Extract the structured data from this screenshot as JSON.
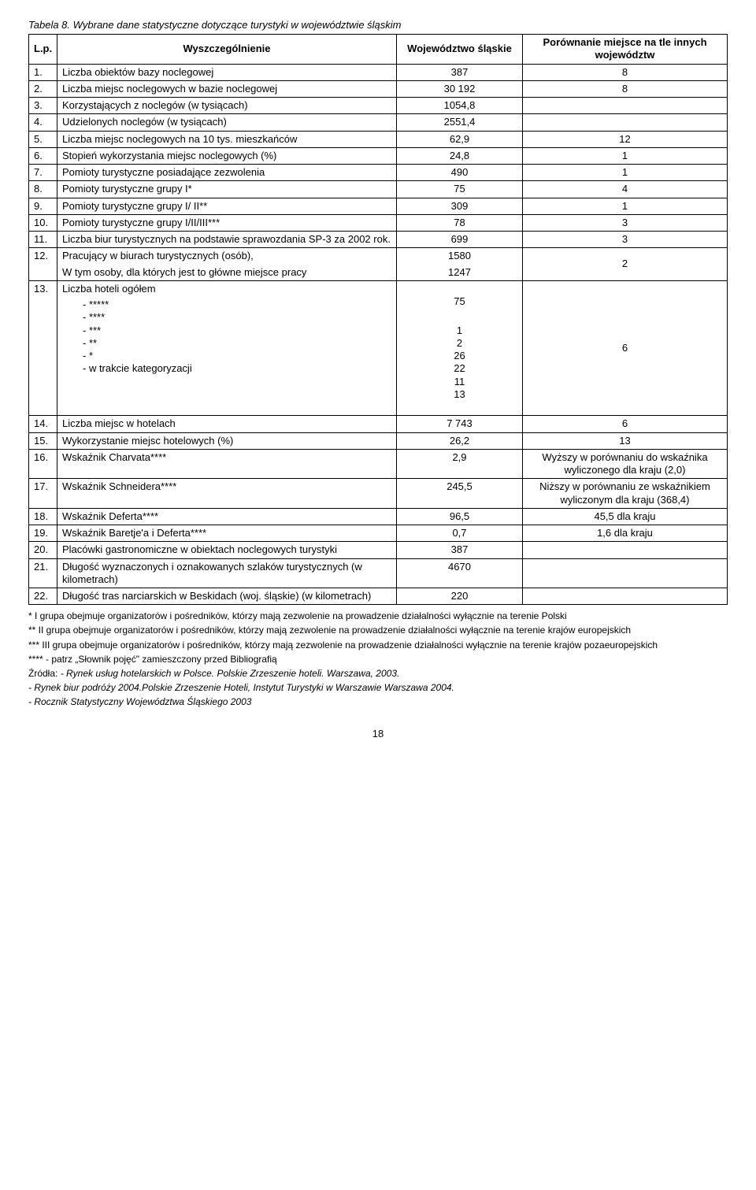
{
  "title": "Tabela 8. Wybrane dane statystyczne dotyczące turystyki w województwie śląskim",
  "header": {
    "lp": "L.p.",
    "desc": "Wyszczególnienie",
    "val": "Województwo śląskie",
    "cmp": "Porównanie miejsce na tle innych województw"
  },
  "rows": [
    {
      "lp": "1.",
      "desc": "Liczba obiektów bazy noclegowej",
      "val": "387",
      "cmp": "8"
    },
    {
      "lp": "2.",
      "desc": "Liczba miejsc noclegowych w bazie noclegowej",
      "val": "30 192",
      "cmp": "8"
    },
    {
      "lp": "3.",
      "desc": "Korzystających z noclegów (w tysiącach)",
      "val": "1054,8",
      "cmp": ""
    },
    {
      "lp": "4.",
      "desc": "Udzielonych noclegów (w tysiącach)",
      "val": "2551,4",
      "cmp": ""
    },
    {
      "lp": "5.",
      "desc": "Liczba miejsc noclegowych na 10 tys. mieszkańców",
      "val": "62,9",
      "cmp": "12"
    },
    {
      "lp": "6.",
      "desc": "Stopień wykorzystania miejsc noclegowych (%)",
      "val": "24,8",
      "cmp": "1"
    },
    {
      "lp": "7.",
      "desc": "Pomioty turystyczne posiadające zezwolenia",
      "val": "490",
      "cmp": "1"
    },
    {
      "lp": "8.",
      "desc": "Pomioty turystyczne grupy I*",
      "val": "75",
      "cmp": "4"
    },
    {
      "lp": "9.",
      "desc": "Pomioty turystyczne grupy I/ II**",
      "val": "309",
      "cmp": "1"
    },
    {
      "lp": "10.",
      "desc": "Pomioty turystyczne grupy I/II/III***",
      "val": "78",
      "cmp": "3"
    },
    {
      "lp": "11.",
      "desc": "Liczba biur turystycznych na podstawie sprawozdania SP-3 za 2002 rok.",
      "val": "699",
      "cmp": "3"
    }
  ],
  "row12": {
    "lp": "12.",
    "desc1": "Pracujący w biurach turystycznych (osób),",
    "desc2": "W tym osoby, dla których jest to główne miejsce pracy",
    "val1": "1580",
    "val2": "1247",
    "cmp": "2"
  },
  "row13": {
    "lp": "13.",
    "desc_head": "Liczba hoteli ogółem",
    "desc_lines": "-    *****\n-    ****\n-    ***\n-    **\n-    *\n-    w trakcie kategoryzacji",
    "val_head": "75",
    "val_lines": "1\n2\n26\n22\n11\n13",
    "cmp": "6"
  },
  "rows_tail": [
    {
      "lp": "14.",
      "desc": "Liczba miejsc w hotelach",
      "val": "7 743",
      "cmp": "6"
    },
    {
      "lp": "15.",
      "desc": "Wykorzystanie miejsc hotelowych (%)",
      "val": "26,2",
      "cmp": "13"
    },
    {
      "lp": "16.",
      "desc": "Wskaźnik Charvata****",
      "val": "2,9",
      "cmp": "Wyższy w porównaniu do wskaźnika wyliczonego dla kraju (2,0)"
    },
    {
      "lp": "17.",
      "desc": "Wskaźnik Schneidera****",
      "val": "245,5",
      "cmp": "Niższy w porównaniu ze wskaźnikiem wyliczonym dla kraju (368,4)"
    },
    {
      "lp": "18.",
      "desc": "Wskaźnik Deferta****",
      "val": "96,5",
      "cmp": "45,5 dla kraju"
    },
    {
      "lp": "19.",
      "desc": "Wskaźnik Baretje'a i Deferta****",
      "val": "0,7",
      "cmp": "1,6 dla kraju"
    },
    {
      "lp": "20.",
      "desc": "Placówki gastronomiczne w obiektach noclegowych turystyki",
      "val": "387",
      "cmp": ""
    },
    {
      "lp": "21.",
      "desc": "Długość wyznaczonych i oznakowanych szlaków turystycznych  (w kilometrach)",
      "val": "4670",
      "cmp": ""
    },
    {
      "lp": "22.",
      "desc": "Długość tras narciarskich w Beskidach (woj. śląskie) (w kilometrach)",
      "val": "220",
      "cmp": ""
    }
  ],
  "footnotes": {
    "f1": "* I grupa obejmuje organizatorów i pośredników, którzy mają zezwolenie na prowadzenie działalności wyłącznie na terenie Polski",
    "f2": "** II grupa obejmuje organizatorów i pośredników, którzy mają zezwolenie na prowadzenie działalności wyłącznie na terenie krajów europejskich",
    "f3": "*** III grupa obejmuje organizatorów i pośredników, którzy mają zezwolenie na prowadzenie działalności wyłącznie na terenie krajów pozaeuropejskich",
    "f4": "**** - patrz „Słownik pojęć\" zamieszczony przed Bibliografią",
    "src_lead": "Źródła: ",
    "src1": "- Rynek usług hotelarskich w Polsce. Polskie Zrzeszenie hoteli. Warszawa, 2003.",
    "src2": "- Rynek biur podróży 2004.Polskie Zrzeszenie Hoteli, Instytut Turystyki w Warszawie  Warszawa 2004.",
    "src3": "- Rocznik Statystyczny Województwa Śląskiego 2003"
  },
  "pagenum": "18"
}
